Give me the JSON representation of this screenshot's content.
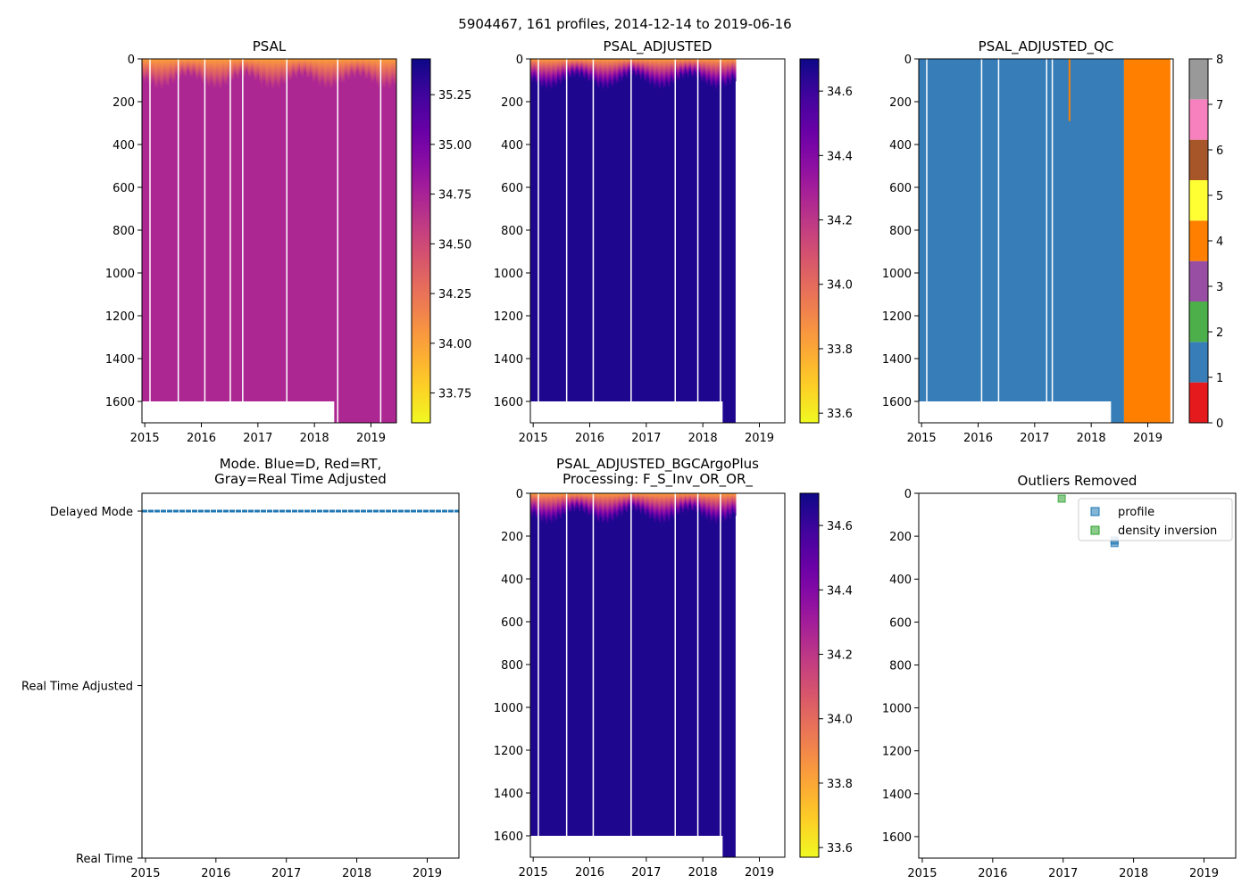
{
  "figure": {
    "suptitle": "5904467, 161 profiles, 2014-12-14 to 2019-06-16"
  },
  "colors": {
    "plasma": [
      "#0d0887",
      "#46039f",
      "#7201a8",
      "#9c179e",
      "#bd3786",
      "#d8576b",
      "#ed7953",
      "#fb9f3a",
      "#fdca26",
      "#f0f921"
    ],
    "qc": [
      "#e41a1c",
      "#377eb8",
      "#4daf4a",
      "#984ea3",
      "#ff7f00",
      "#ffff33",
      "#a65628",
      "#f781bf",
      "#999999"
    ],
    "mode_line": "#1f77b4",
    "outlier_profile": "#1f77b4",
    "outlier_density": "#2ca02c"
  },
  "chart_data": [
    {
      "type": "heatmap",
      "title": "PSAL",
      "xlabel": "",
      "ylabel": "",
      "xlim": [
        2014.95,
        2019.45
      ],
      "ylim": [
        1700,
        0
      ],
      "xticks": [
        "2015",
        "2016",
        "2017",
        "2018",
        "2019"
      ],
      "yticks": [
        "0",
        "200",
        "400",
        "600",
        "800",
        "1000",
        "1200",
        "1400",
        "1600"
      ],
      "colorbar": {
        "range": [
          33.6,
          35.43
        ],
        "ticks": [
          "33.75",
          "34.00",
          "34.25",
          "34.50",
          "34.75",
          "35.00",
          "35.25"
        ]
      },
      "deep_value": 34.72,
      "data_end_year": 2019.45,
      "mixed_layer_depth": 130,
      "gap_years": [
        2015.08,
        2015.58,
        2016.05,
        2016.5,
        2016.72,
        2017.5,
        2018.4,
        2019.16
      ]
    },
    {
      "type": "heatmap",
      "title": "PSAL_ADJUSTED",
      "xlabel": "",
      "ylabel": "",
      "xlim": [
        2014.95,
        2019.45
      ],
      "ylim": [
        1700,
        0
      ],
      "xticks": [
        "2015",
        "2016",
        "2017",
        "2018",
        "2019"
      ],
      "yticks": [
        "0",
        "200",
        "400",
        "600",
        "800",
        "1000",
        "1200",
        "1400",
        "1600"
      ],
      "colorbar": {
        "range": [
          33.57,
          34.7
        ],
        "ticks": [
          "33.6",
          "33.8",
          "34.0",
          "34.2",
          "34.4",
          "34.6"
        ]
      },
      "deep_value": 34.66,
      "data_end_year": 2018.58,
      "mixed_layer_depth": 130,
      "gap_years": [
        2015.08,
        2015.58,
        2016.05,
        2016.72,
        2017.5,
        2017.9,
        2018.3
      ]
    },
    {
      "type": "heatmap",
      "title": "PSAL_ADJUSTED_QC",
      "xlabel": "",
      "ylabel": "",
      "xlim": [
        2014.95,
        2019.45
      ],
      "ylim": [
        1700,
        0
      ],
      "xticks": [
        "2015",
        "2016",
        "2017",
        "2018",
        "2019"
      ],
      "yticks": [
        "0",
        "200",
        "400",
        "600",
        "800",
        "1000",
        "1200",
        "1400",
        "1600"
      ],
      "colorbar": {
        "range": [
          0,
          8
        ],
        "ticks": [
          "0",
          "1",
          "2",
          "3",
          "4",
          "5",
          "6",
          "7",
          "8"
        ]
      },
      "qc_good_flag": 1,
      "qc_bad_flag": 4,
      "qc_bad_start_year": 2018.58,
      "data_end_year": 2019.4,
      "gap_years": [
        2015.08,
        2016.05,
        2016.35,
        2017.2,
        2017.3
      ]
    },
    {
      "type": "line",
      "title": "Mode. Blue=D, Red=RT,\nGray=Real Time Adjusted",
      "title_lines": [
        "Mode. Blue=D, Red=RT,",
        "Gray=Real Time Adjusted"
      ],
      "xlim": [
        2014.95,
        2019.45
      ],
      "xticks": [
        "2015",
        "2016",
        "2017",
        "2018",
        "2019"
      ],
      "yticks": [
        "Delayed Mode",
        "Real Time Adjusted",
        "Real Time"
      ],
      "series": [
        {
          "name": "mode",
          "x": [
            2014.95,
            2019.45
          ],
          "y": [
            2,
            2
          ]
        }
      ]
    },
    {
      "type": "heatmap",
      "title": "PSAL_ADJUSTED_BGCArgoPlus\nProcessing: F_S_Inv_OR_OR_",
      "title_lines": [
        "PSAL_ADJUSTED_BGCArgoPlus",
        "Processing: F_S_Inv_OR_OR_"
      ],
      "xlabel": "",
      "ylabel": "",
      "xlim": [
        2014.95,
        2019.45
      ],
      "ylim": [
        1700,
        0
      ],
      "xticks": [
        "2015",
        "2016",
        "2017",
        "2018",
        "2019"
      ],
      "yticks": [
        "0",
        "200",
        "400",
        "600",
        "800",
        "1000",
        "1200",
        "1400",
        "1600"
      ],
      "colorbar": {
        "range": [
          33.57,
          34.7
        ],
        "ticks": [
          "33.6",
          "33.8",
          "34.0",
          "34.2",
          "34.4",
          "34.6"
        ]
      },
      "deep_value": 34.66,
      "data_end_year": 2018.58,
      "mixed_layer_depth": 130,
      "gap_years": [
        2015.08,
        2015.58,
        2016.05,
        2016.72,
        2017.5,
        2017.9,
        2018.3
      ]
    },
    {
      "type": "scatter",
      "title": "Outliers Removed",
      "xlim": [
        2014.95,
        2019.45
      ],
      "ylim": [
        1700,
        0
      ],
      "xticks": [
        "2015",
        "2016",
        "2017",
        "2018",
        "2019"
      ],
      "yticks": [
        "0",
        "200",
        "400",
        "600",
        "800",
        "1000",
        "1200",
        "1400",
        "1600"
      ],
      "legend": {
        "position": "upper-right",
        "entries": [
          "profile",
          "density inversion"
        ]
      },
      "series": [
        {
          "name": "profile",
          "points": [
            [
              2017.73,
              220
            ],
            [
              2017.73,
              232
            ]
          ]
        },
        {
          "name": "density inversion",
          "points": [
            [
              2016.98,
              25
            ]
          ]
        }
      ]
    }
  ]
}
